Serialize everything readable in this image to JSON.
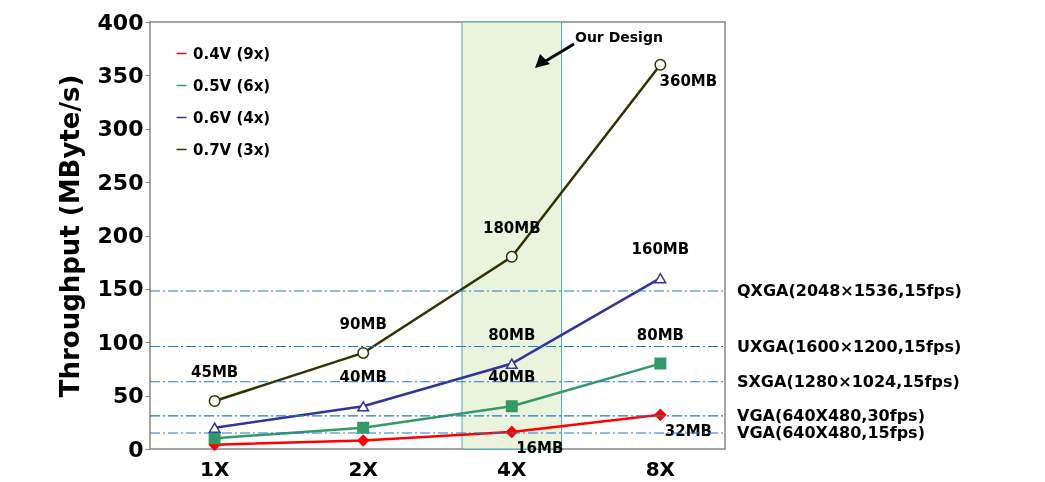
{
  "chart_data": {
    "type": "line",
    "ylabel": "Throughput (MByte/s)",
    "categories": [
      "1X",
      "2X",
      "4X",
      "8X"
    ],
    "ylim": [
      0,
      400
    ],
    "yticks": [
      0,
      50,
      100,
      150,
      200,
      250,
      300,
      350,
      400
    ],
    "legend": "top left",
    "grid": false,
    "series": [
      {
        "name": "0.4V (9x)",
        "color": "#ff0000",
        "marker": "diamond",
        "values": [
          4,
          8,
          16,
          32
        ],
        "value_labels": [
          null,
          null,
          "16MB",
          "32MB"
        ]
      },
      {
        "name": "0.5V (6x)",
        "color": "#339966",
        "marker": "square",
        "values": [
          10,
          20,
          40,
          80
        ],
        "value_labels": [
          null,
          null,
          "40MB",
          "80MB"
        ]
      },
      {
        "name": "0.6V (4x)",
        "color": "#333399",
        "marker": "triangle",
        "values": [
          20,
          40,
          80,
          160
        ],
        "value_labels": [
          null,
          "40MB",
          "80MB",
          "160MB"
        ]
      },
      {
        "name": "0.7V (3x)",
        "color": "#333300",
        "marker": "circle",
        "values": [
          45,
          90,
          180,
          360
        ],
        "value_labels": [
          "45MB",
          "90MB",
          "180MB",
          "360MB"
        ]
      }
    ],
    "ref_lines": [
      {
        "axis": "y",
        "value": 148,
        "label": "QXGA(2048×1536,15fps)",
        "color": "#1f7acc",
        "line_style": "dashdot"
      },
      {
        "axis": "y",
        "value": 96,
        "label": "UXGA(1600×1200,15fps)",
        "color": "#1f7acc",
        "line_style": "dashdot"
      },
      {
        "axis": "y",
        "value": 63,
        "label": "SXGA(1280×1024,15fps)",
        "color": "#1f7acc",
        "line_style": "dashdot"
      },
      {
        "axis": "y",
        "value": 31,
        "label": "VGA(640X480,30fps)",
        "color": "#1f7acc",
        "line_style": "dashdot"
      },
      {
        "axis": "y",
        "value": 15,
        "label": "VGA(640X480,15fps)",
        "color": "#1f7acc",
        "line_style": "dashdot"
      }
    ],
    "bands": [
      {
        "axis": "x",
        "from": "4X",
        "to": "4X",
        "color": "#eaf4dc"
      }
    ],
    "annotations": [
      "Our Design"
    ]
  }
}
